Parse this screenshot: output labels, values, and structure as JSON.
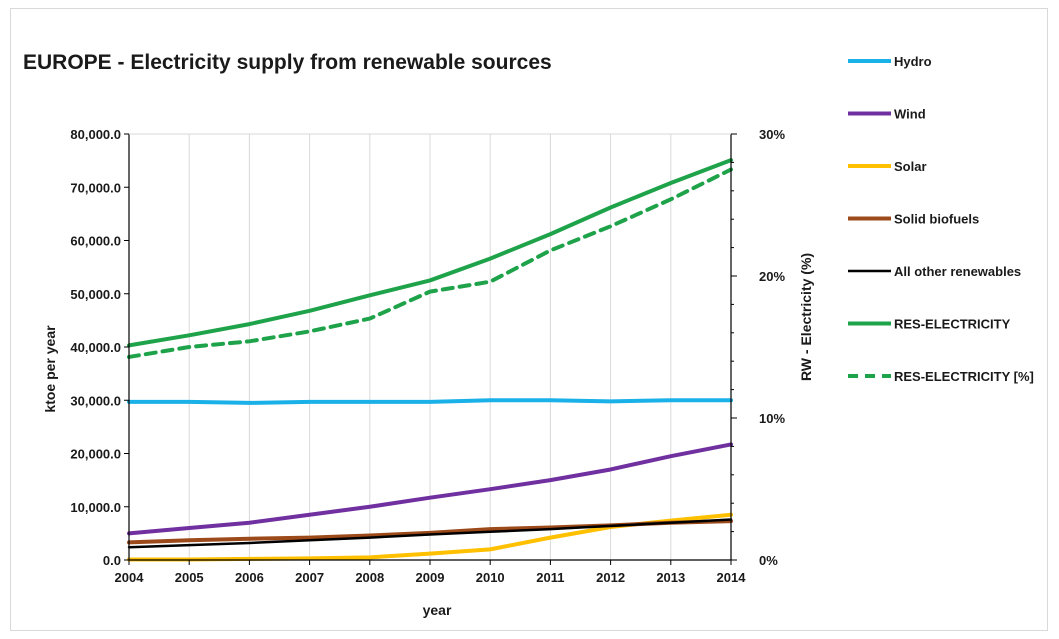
{
  "chart_data": {
    "type": "line",
    "title": "EUROPE - Electricity supply from renewable sources",
    "xlabel": "year",
    "ylabel": "ktoe per year",
    "y2label": "RW - Electricity (%)",
    "x": [
      "2004",
      "2005",
      "2006",
      "2007",
      "2008",
      "2009",
      "2010",
      "2011",
      "2012",
      "2013",
      "2014"
    ],
    "ylim": [
      0,
      80000
    ],
    "y_ticks": [
      "0.0",
      "10,000.0",
      "20,000.0",
      "30,000.0",
      "40,000.0",
      "50,000.0",
      "60,000.0",
      "70,000.0",
      "80,000.0"
    ],
    "y2lim": [
      0,
      30
    ],
    "y2_ticks": [
      "0%",
      "10%",
      "20%",
      "30%"
    ],
    "grid": "vertical",
    "legend_position": "right",
    "series": [
      {
        "name": "Hydro",
        "axis": "left",
        "color": "#1ab0e8",
        "dashed": false,
        "values": [
          29700,
          29700,
          29500,
          29700,
          29700,
          29700,
          30000,
          30000,
          29800,
          30000,
          30000
        ]
      },
      {
        "name": "Wind",
        "axis": "left",
        "color": "#7030a0",
        "dashed": false,
        "values": [
          5000,
          6000,
          7000,
          8500,
          10000,
          11700,
          13300,
          15000,
          17000,
          19500,
          21700
        ]
      },
      {
        "name": "Solar",
        "axis": "left",
        "color": "#ffc000",
        "dashed": false,
        "values": [
          100,
          100,
          200,
          300,
          500,
          1200,
          2000,
          4200,
          6200,
          7400,
          8500
        ]
      },
      {
        "name": "Solid biofuels",
        "axis": "left",
        "color": "#9c4a1a",
        "dashed": false,
        "values": [
          3300,
          3700,
          4000,
          4200,
          4600,
          5100,
          5800,
          6100,
          6500,
          7000,
          7300
        ]
      },
      {
        "name": "All other renewables",
        "axis": "left",
        "color": "#000000",
        "dashed": false,
        "values": [
          2400,
          2800,
          3200,
          3700,
          4200,
          4800,
          5300,
          5800,
          6400,
          7000,
          7600
        ]
      },
      {
        "name": "RES-ELECTRICITY",
        "axis": "left",
        "color": "#1fa34a",
        "dashed": false,
        "values": [
          40300,
          42200,
          44300,
          46800,
          49700,
          52500,
          56600,
          61200,
          66200,
          70800,
          75100
        ]
      },
      {
        "name": "RES-ELECTRICITY [%]",
        "axis": "right",
        "color": "#1fa34a",
        "dashed": true,
        "values": [
          14.3,
          15.0,
          15.4,
          16.1,
          17.0,
          18.9,
          19.6,
          21.8,
          23.5,
          25.4,
          27.5
        ]
      }
    ]
  }
}
